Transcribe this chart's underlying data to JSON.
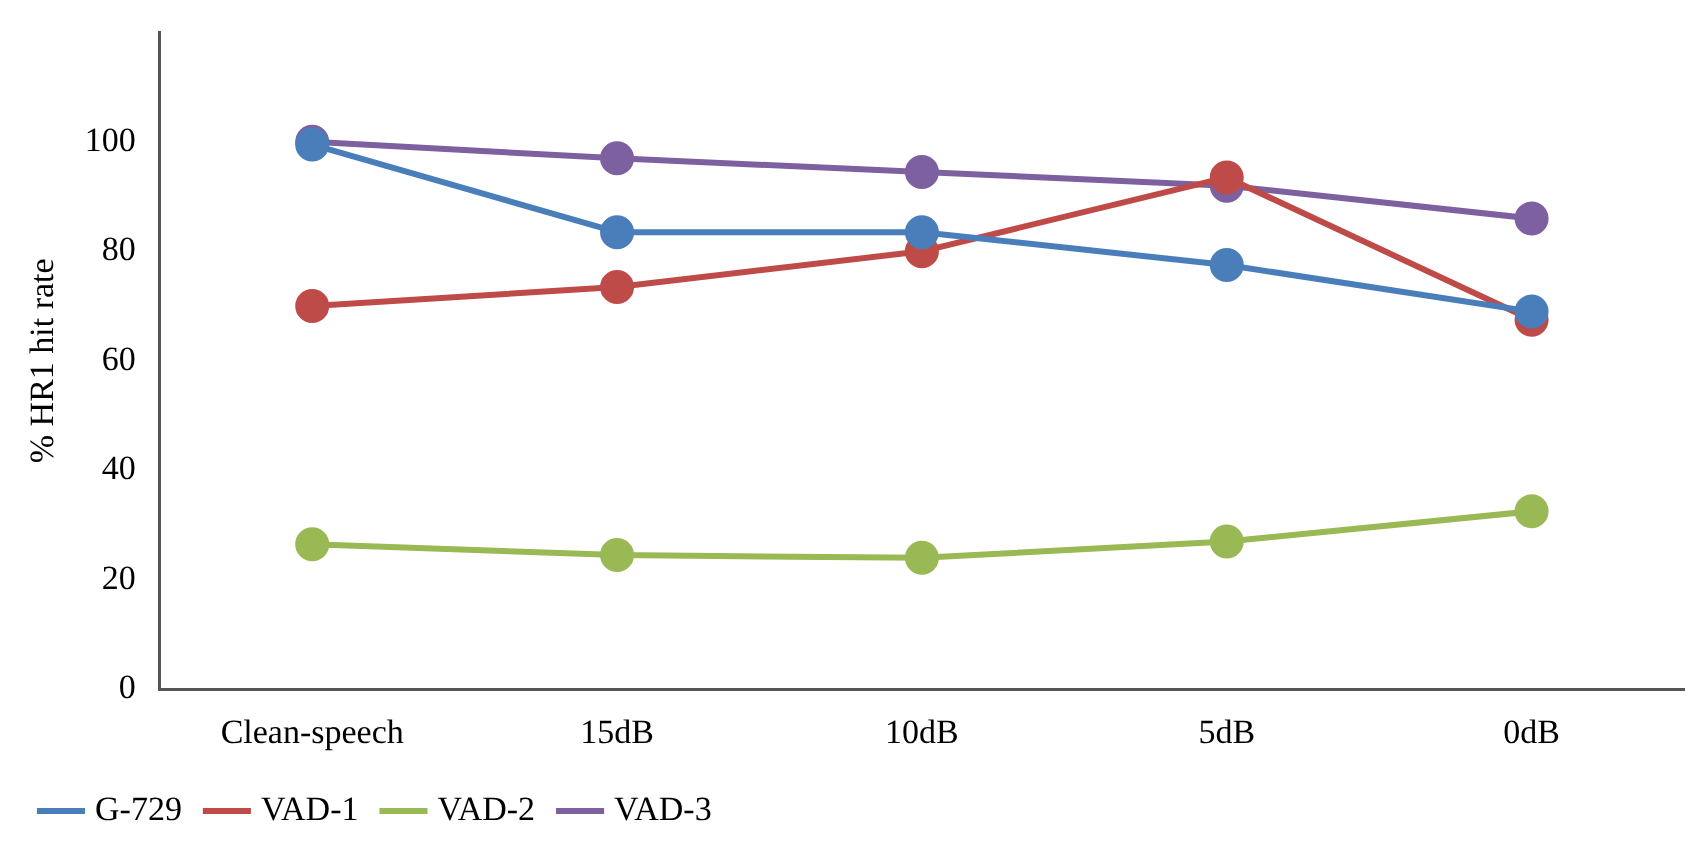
{
  "chart_data": {
    "type": "line",
    "ylabel": "% HR1 hit rate",
    "categories": [
      "Clean-speech",
      "15dB",
      "10dB",
      "5dB",
      "0dB"
    ],
    "series": [
      {
        "name": "G-729",
        "color": "#4a7ebb",
        "values": [
          99.5,
          83.5,
          83.5,
          77.5,
          69
        ]
      },
      {
        "name": "VAD-1",
        "color": "#be4b48",
        "values": [
          70,
          73.5,
          80,
          93.5,
          67.5
        ]
      },
      {
        "name": "VAD-2",
        "color": "#98b954",
        "values": [
          26.5,
          24.5,
          24,
          27,
          32.5
        ]
      },
      {
        "name": "VAD-3",
        "color": "#7d60a0",
        "values": [
          100,
          97,
          94.5,
          92,
          86
        ]
      }
    ],
    "ylim": [
      0,
      120
    ],
    "yticks": [
      0,
      20,
      40,
      60,
      80,
      100
    ],
    "grid": false,
    "legend": "bottom",
    "marker": "circle",
    "line_style": "solid"
  }
}
